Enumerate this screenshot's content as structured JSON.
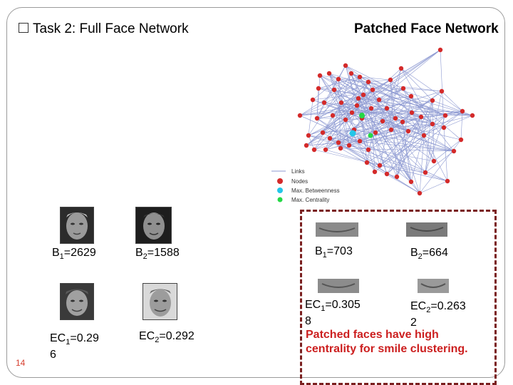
{
  "slide": {
    "left_title_prefix": "Task 2: ",
    "left_title_bold": "Full Face Network",
    "right_title": "Patched Face Network",
    "page_number": "14"
  },
  "graph": {
    "legend": [
      "Links",
      "Nodes",
      "Max. Betweenness",
      "Max. Centrality"
    ],
    "colors": {
      "node": "#d42a2a",
      "betweenness": "#23c6e8",
      "centrality": "#25d846",
      "link": "#8e9ad2"
    }
  },
  "full_faces": {
    "b1": {
      "prefix": "B",
      "sub": "1",
      "value": "=2629"
    },
    "b2": {
      "prefix": "B",
      "sub": "2",
      "value": "=1588"
    },
    "ec1": {
      "prefix": "EC",
      "sub": "1",
      "value": "=0.29",
      "wrap": "6"
    },
    "ec2": {
      "prefix": "EC",
      "sub": "2",
      "value": "=0.292"
    }
  },
  "patched_faces": {
    "b1": {
      "prefix": "B",
      "sub": "1",
      "value": "=703"
    },
    "b2": {
      "prefix": "B",
      "sub": "2",
      "value": "=664"
    },
    "ec1": {
      "prefix": "EC",
      "sub": "1",
      "value": "=0.305",
      "wrap": "8"
    },
    "ec2": {
      "prefix": "EC",
      "sub": "2",
      "value": "=0.263",
      "wrap": "2"
    }
  },
  "note": "Patched faces have high centrality for smile clustering."
}
